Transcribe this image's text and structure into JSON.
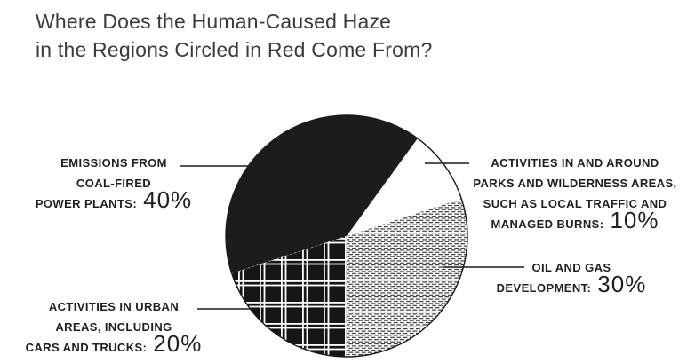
{
  "title": {
    "line1": "Where Does the Human-Caused Haze",
    "line2": "in the Regions Circled in Red Come From?"
  },
  "chart_data": {
    "type": "pie",
    "title": "Where Does the Human-Caused Haze in the Regions Circled in Red Come From?",
    "unit": "percent",
    "slices": [
      {
        "id": "coal",
        "label": "EMISSIONS FROM COAL-FIRED POWER PLANTS",
        "value": 40,
        "fill_style": "solid-black"
      },
      {
        "id": "parks",
        "label": "ACTIVITIES IN AND AROUND PARKS AND WILDERNESS AREAS, SUCH AS LOCAL TRAFFIC AND MANAGED BURNS",
        "value": 10,
        "fill_style": "white"
      },
      {
        "id": "oil",
        "label": "OIL AND GAS DEVELOPMENT",
        "value": 30,
        "fill_style": "horizontal-dash-pattern"
      },
      {
        "id": "urban",
        "label": "ACTIVITIES IN URBAN AREAS, INCLUDING CARS AND TRUCKS",
        "value": 20,
        "fill_style": "black-white-crosshatch"
      }
    ],
    "layout_hints": {
      "legend_position": "callout-labels-with-leader-lines",
      "first_slice": "parks",
      "first_slice_start_deg_ccw_from_3oclock": 54,
      "direction": "clockwise",
      "grid": false
    }
  },
  "callouts": {
    "coal": {
      "lines": [
        "EMISSIONS FROM",
        "COAL-FIRED",
        "POWER PLANTS:"
      ],
      "pct": "40%"
    },
    "parks": {
      "lines": [
        "ACTIVITIES IN AND AROUND",
        "PARKS AND WILDERNESS AREAS,",
        "SUCH AS LOCAL TRAFFIC AND",
        "MANAGED BURNS:"
      ],
      "pct": "10%"
    },
    "oil": {
      "lines": [
        "OIL AND GAS",
        "DEVELOPMENT:"
      ],
      "pct": "30%"
    },
    "urban": {
      "lines": [
        "ACTIVITIES IN URBAN",
        "AREAS, INCLUDING",
        "CARS AND TRUCKS:"
      ],
      "pct": "20%"
    }
  },
  "colors": {
    "ink": "#1c1c1c",
    "title_text": "#3b3b3b",
    "label_text": "#1f1f1f",
    "background": "#ffffff"
  }
}
